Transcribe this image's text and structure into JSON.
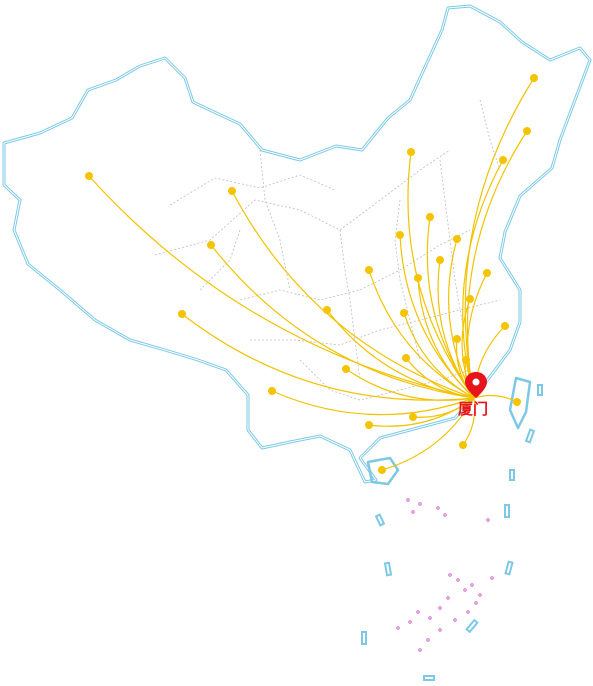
{
  "hub": {
    "name": "厦门",
    "pin_color": "#e8141b"
  },
  "colors": {
    "border": "#7cc9e6",
    "province_line": "#bdbdbd",
    "route": "#f2c200",
    "dot": "#f5c400",
    "islands": "#d36ac9",
    "label": "#e8141b"
  },
  "destinations_count": 29
}
